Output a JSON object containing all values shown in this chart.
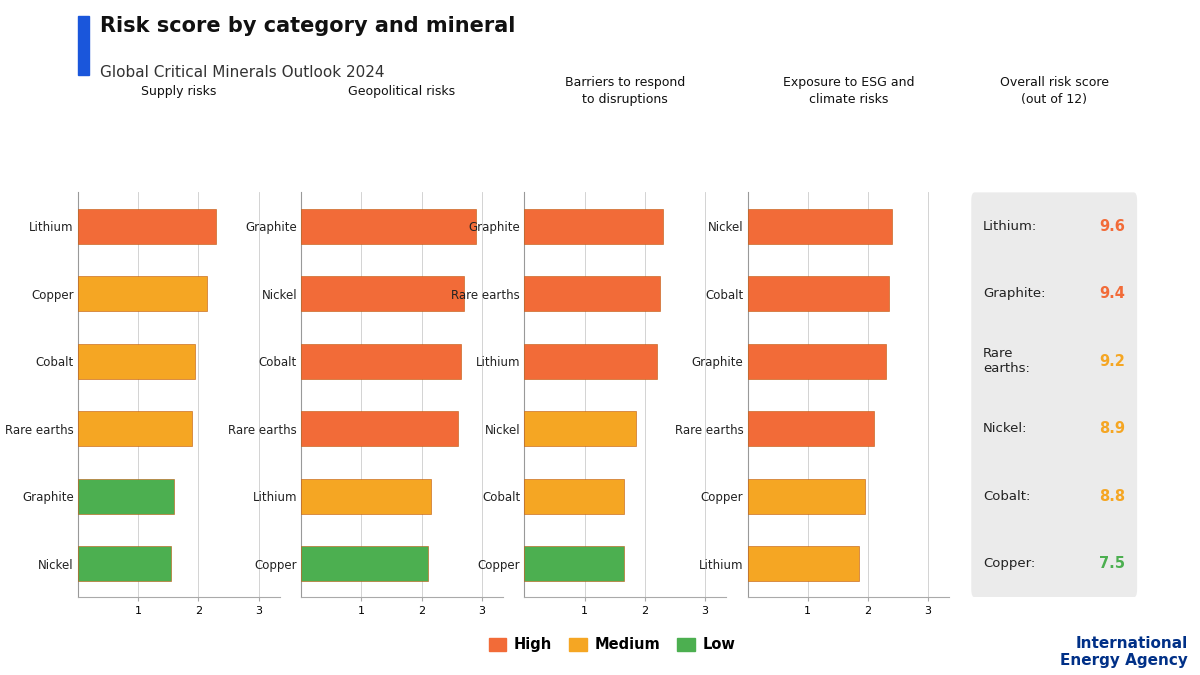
{
  "title": "Risk score by category and mineral",
  "subtitle": "Global Critical Minerals Outlook 2024",
  "title_bar_color": "#1a56db",
  "background_color": "#ffffff",
  "panel_color": "#b8dff0",
  "categories": [
    {
      "label": "Supply risks",
      "minerals": [
        "Lithium",
        "Copper",
        "Cobalt",
        "Rare earths",
        "Graphite",
        "Nickel"
      ],
      "values": [
        2.3,
        2.15,
        1.95,
        1.9,
        1.6,
        1.55
      ],
      "colors": [
        "#f26b38",
        "#f5a623",
        "#f5a623",
        "#f5a623",
        "#4caf50",
        "#4caf50"
      ]
    },
    {
      "label": "Geopolitical risks",
      "minerals": [
        "Graphite",
        "Nickel",
        "Cobalt",
        "Rare earths",
        "Lithium",
        "Copper"
      ],
      "values": [
        2.9,
        2.7,
        2.65,
        2.6,
        2.15,
        2.1
      ],
      "colors": [
        "#f26b38",
        "#f26b38",
        "#f26b38",
        "#f26b38",
        "#f5a623",
        "#4caf50"
      ]
    },
    {
      "label": "Barriers to respond\nto disruptions",
      "minerals": [
        "Graphite",
        "Rare earths",
        "Lithium",
        "Nickel",
        "Cobalt",
        "Copper"
      ],
      "values": [
        2.3,
        2.25,
        2.2,
        1.85,
        1.65,
        1.65
      ],
      "colors": [
        "#f26b38",
        "#f26b38",
        "#f26b38",
        "#f5a623",
        "#f5a623",
        "#4caf50"
      ]
    },
    {
      "label": "Exposure to ESG and\nclimate risks",
      "minerals": [
        "Nickel",
        "Cobalt",
        "Graphite",
        "Rare earths",
        "Copper",
        "Lithium"
      ],
      "values": [
        2.4,
        2.35,
        2.3,
        2.1,
        1.95,
        1.85
      ],
      "colors": [
        "#f26b38",
        "#f26b38",
        "#f26b38",
        "#f26b38",
        "#f5a623",
        "#f5a623"
      ]
    }
  ],
  "overall_scores": [
    {
      "mineral": "Lithium:",
      "score": "9.6",
      "color": "#f26b38"
    },
    {
      "mineral": "Graphite:",
      "score": "9.4",
      "color": "#f26b38"
    },
    {
      "mineral": "Rare\nearths:",
      "score": "9.2",
      "color": "#f5a623"
    },
    {
      "mineral": "Nickel:",
      "score": "8.9",
      "color": "#f5a623"
    },
    {
      "mineral": "Cobalt:",
      "score": "8.8",
      "color": "#f5a623"
    },
    {
      "mineral": "Copper:",
      "score": "7.5",
      "color": "#4caf50"
    }
  ],
  "high_color": "#f26b38",
  "medium_color": "#f5a623",
  "low_color": "#4caf50",
  "iea_blue": "#003087",
  "overall_box_color": "#ebebeb"
}
